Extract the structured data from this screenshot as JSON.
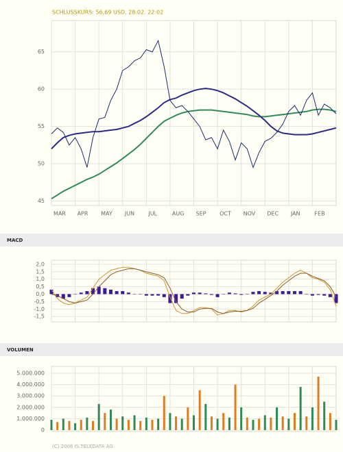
{
  "chart_data": [
    {
      "type": "line",
      "title": "SCHLUSSKURS: 56,69 USD, 28.02. 22:02",
      "xlim": [
        0,
        12
      ],
      "xticks": [
        {
          "value": 0,
          "label": "MAR"
        },
        {
          "value": 1,
          "label": "APR"
        },
        {
          "value": 2,
          "label": "MAY"
        },
        {
          "value": 3,
          "label": "JUN"
        },
        {
          "value": 4,
          "label": "JUL"
        },
        {
          "value": 5,
          "label": "AUG"
        },
        {
          "value": 6,
          "label": "SEP"
        },
        {
          "value": 7,
          "label": "OCT"
        },
        {
          "value": 8,
          "label": "NOV"
        },
        {
          "value": 9,
          "label": "DEC"
        },
        {
          "value": 10,
          "label": "JAN"
        },
        {
          "value": 11,
          "label": "FEB"
        }
      ],
      "ylim": [
        44.4,
        69.2
      ],
      "yticks": [
        45,
        50,
        55,
        60,
        65
      ],
      "grid": true,
      "x": [
        0,
        0.25,
        0.5,
        0.75,
        1,
        1.25,
        1.5,
        1.75,
        2,
        2.25,
        2.5,
        2.75,
        3,
        3.25,
        3.5,
        3.75,
        4,
        4.25,
        4.5,
        4.75,
        5,
        5.25,
        5.5,
        5.75,
        6,
        6.25,
        6.5,
        6.75,
        7,
        7.25,
        7.5,
        7.75,
        8,
        8.25,
        8.5,
        8.75,
        9,
        9.25,
        9.5,
        9.75,
        10,
        10.25,
        10.5,
        10.75,
        11,
        11.25,
        11.5,
        11.75,
        12
      ],
      "series": [
        {
          "color": "#1a2a6c",
          "width": 1,
          "values": [
            54,
            54.8,
            54.2,
            52.5,
            53.5,
            52,
            49.5,
            53.5,
            56,
            56.2,
            58.5,
            60,
            62.5,
            63,
            63.8,
            64.2,
            65.3,
            65,
            66.5,
            63,
            58.5,
            57.5,
            57.8,
            57,
            56,
            55,
            53.2,
            53.5,
            52,
            54.5,
            53,
            50.5,
            52.8,
            52,
            49.5,
            51.5,
            53,
            53.4,
            54.2,
            55.3,
            57,
            57.8,
            56.5,
            58.5,
            59.5,
            56.5,
            58,
            57.5,
            56.7
          ]
        },
        {
          "color": "#2a2a8a",
          "width": 2,
          "values": [
            52,
            52.8,
            53.5,
            53.8,
            54,
            54.1,
            54.2,
            54.3,
            54.3,
            54.4,
            54.5,
            54.6,
            54.8,
            55,
            55.4,
            55.8,
            56.3,
            56.9,
            57.5,
            58.2,
            58.6,
            58.8,
            59.2,
            59.5,
            59.8,
            60,
            60.1,
            60,
            59.8,
            59.5,
            59.1,
            58.7,
            58.2,
            57.7,
            57.1,
            56.5,
            55.8,
            55,
            54.4,
            54.1,
            54,
            53.9,
            53.9,
            53.9,
            54,
            54.2,
            54.4,
            54.6,
            54.8
          ]
        },
        {
          "color": "#2e8b57",
          "width": 2,
          "values": [
            45.3,
            45.8,
            46.3,
            46.7,
            47.1,
            47.5,
            47.9,
            48.2,
            48.6,
            49.1,
            49.6,
            50.1,
            50.7,
            51.3,
            51.9,
            52.6,
            53.4,
            54.2,
            55,
            55.7,
            56.1,
            56.5,
            56.8,
            57,
            57.1,
            57.2,
            57.2,
            57.2,
            57.1,
            57,
            56.9,
            56.8,
            56.7,
            56.6,
            56.4,
            56.3,
            56.3,
            56.4,
            56.5,
            56.6,
            56.7,
            56.8,
            56.9,
            57,
            57.2,
            57.3,
            57.3,
            57.2,
            57
          ]
        }
      ]
    },
    {
      "type": "macd",
      "title": "MACD",
      "ylim": [
        -1.86,
        2.27
      ],
      "yticks": [
        {
          "value": 2,
          "label": "2,0"
        },
        {
          "value": 1.5,
          "label": "1,5"
        },
        {
          "value": 1,
          "label": "1,0"
        },
        {
          "value": 0.5,
          "label": "0,5"
        },
        {
          "value": 0,
          "label": "0,0"
        },
        {
          "value": -0.5,
          "label": "-0,5"
        },
        {
          "value": -1,
          "label": "-1,0"
        },
        {
          "value": -1.5,
          "label": "-1,5"
        }
      ],
      "grid": true,
      "histogram": {
        "color": "#3a1a9a",
        "values": [
          0.3,
          -0.2,
          -0.3,
          -0.2,
          0,
          0.1,
          0.2,
          0.4,
          0.5,
          0.4,
          0.3,
          0.2,
          0.2,
          0.1,
          0,
          0,
          -0.1,
          -0.1,
          -0.1,
          -0.2,
          -0.6,
          -0.6,
          -0.3,
          -0.1,
          0.1,
          0.1,
          0.05,
          -0.05,
          -0.2,
          0,
          0.1,
          0.05,
          -0.05,
          0,
          0.15,
          0.2,
          0.15,
          0.1,
          0.2,
          0.2,
          0.2,
          0.2,
          0.2,
          0,
          -0.1,
          -0.05,
          -0.1,
          -0.2,
          -0.6
        ]
      },
      "series": [
        {
          "color": "#d4922a",
          "values": [
            0.3,
            -0.3,
            -0.6,
            -0.7,
            -0.6,
            -0.4,
            -0.2,
            0.4,
            1.0,
            1.3,
            1.6,
            1.7,
            1.8,
            1.8,
            1.7,
            1.6,
            1.4,
            1.3,
            1.2,
            0.9,
            -0.2,
            -1.1,
            -1.3,
            -1.3,
            -1.1,
            -0.9,
            -0.9,
            -1.0,
            -1.4,
            -1.3,
            -1.1,
            -1.1,
            -1.2,
            -1.1,
            -0.8,
            -0.4,
            -0.2,
            0,
            0.4,
            0.8,
            1.1,
            1.4,
            1.6,
            1.4,
            1.1,
            1.0,
            0.8,
            0.3,
            -0.8
          ]
        },
        {
          "color": "#8b5a2b",
          "values": [
            0,
            -0.1,
            -0.3,
            -0.5,
            -0.6,
            -0.5,
            -0.4,
            0,
            0.5,
            0.9,
            1.3,
            1.5,
            1.6,
            1.7,
            1.7,
            1.6,
            1.5,
            1.4,
            1.3,
            1.1,
            0.4,
            -0.5,
            -1.0,
            -1.2,
            -1.2,
            -1.0,
            -0.95,
            -0.95,
            -1.2,
            -1.3,
            -1.2,
            -1.15,
            -1.15,
            -1.1,
            -0.95,
            -0.6,
            -0.35,
            -0.1,
            0.2,
            0.6,
            0.9,
            1.2,
            1.4,
            1.4,
            1.2,
            1.05,
            0.9,
            0.5,
            -0.2
          ]
        }
      ]
    },
    {
      "type": "bar",
      "title": "VOLUMEN",
      "ylim": [
        -120000,
        5600000
      ],
      "yticks": [
        0,
        {
          "value": 1000000,
          "label": "1.000.000"
        },
        {
          "value": 2000000,
          "label": "2.000.000"
        },
        {
          "value": 3000000,
          "label": "3.000.000"
        },
        {
          "value": 4000000,
          "label": "4.000.000"
        },
        {
          "value": 5000000,
          "label": "5.000.000"
        }
      ],
      "grid": true,
      "colors": [
        "#2e8b57",
        "#e07b20"
      ],
      "values": [
        900000,
        700000,
        1000000,
        800000,
        600000,
        900000,
        1100000,
        800000,
        2300000,
        1500000,
        1800000,
        1000000,
        1200000,
        900000,
        1300000,
        800000,
        1100000,
        900000,
        1000000,
        3000000,
        1500000,
        1200000,
        1000000,
        2000000,
        1300000,
        3500000,
        2300000,
        1200000,
        1000000,
        1500000,
        1100000,
        4000000,
        2000000,
        1100000,
        900000,
        1000000,
        1300000,
        1100000,
        2000000,
        1200000,
        1000000,
        1500000,
        3800000,
        1200000,
        2000000,
        4700000,
        2500000,
        1500000,
        900000
      ]
    },
    {
      "type": "footer",
      "text": "(C) 2006 IS.TELEDATA AG"
    }
  ]
}
